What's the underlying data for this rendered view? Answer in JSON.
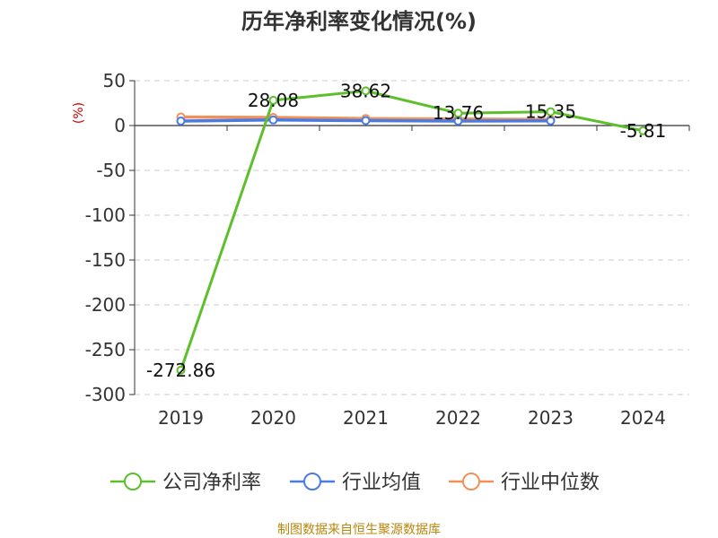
{
  "colors": {
    "company": "#5dbf2b",
    "industry_avg": "#4a7be0",
    "industry_median": "#f0905a",
    "ylabel": "#cc0000",
    "source": "#b8860b",
    "grid": "#cccccc",
    "axis": "#333333"
  },
  "source_text": "制图数据来自恒生聚源数据库",
  "chart_data": {
    "type": "line",
    "title": "历年净利率变化情况(%)",
    "xlabel": "",
    "ylabel": "(%)",
    "categories": [
      "2019",
      "2020",
      "2021",
      "2022",
      "2023",
      "2024"
    ],
    "ylim": [
      -300,
      50
    ],
    "yticks": [
      50,
      0,
      -50,
      -100,
      -150,
      -200,
      -250,
      -300
    ],
    "grid": true,
    "legend_position": "bottom",
    "series": [
      {
        "name": "公司净利率",
        "color": "#5dbf2b",
        "values": [
          -272.86,
          28.08,
          38.62,
          13.76,
          15.35,
          -5.81
        ],
        "labels": [
          "-272.86",
          "28.08",
          "38.62",
          "13.76",
          "15.35",
          "-5.81"
        ]
      },
      {
        "name": "行业均值",
        "color": "#4a7be0",
        "values": [
          5.0,
          6.2,
          5.5,
          5.0,
          5.2,
          null
        ]
      },
      {
        "name": "行业中位数",
        "color": "#f0905a",
        "values": [
          9.5,
          9.0,
          7.8,
          7.2,
          6.8,
          null
        ]
      }
    ]
  }
}
